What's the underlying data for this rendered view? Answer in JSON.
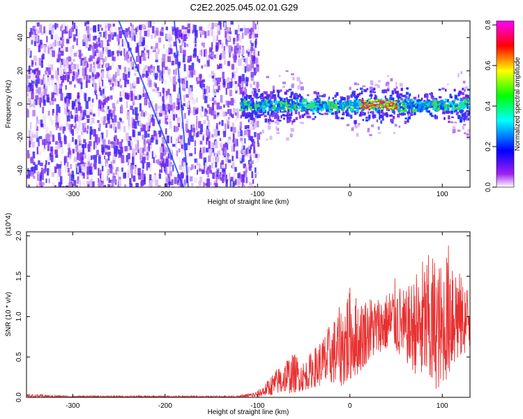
{
  "title": "C2E2.2025.045.02.01.G29",
  "chart_data": [
    {
      "type": "heatmap",
      "title": "C2E2.2025.045.02.01.G29",
      "xlabel": "Height of straight line (km)",
      "ylabel": "Frequency (Hz)",
      "xlim": [
        -350,
        130
      ],
      "ylim": [
        -50,
        50
      ],
      "xticks": [
        -300,
        -200,
        -100,
        0,
        100
      ],
      "yticks": [
        -40,
        -20,
        0,
        20,
        40
      ],
      "colorbar": {
        "label": "Normalized spectral amplitude",
        "range": [
          0.0,
          0.82
        ],
        "ticks": [
          "0.0",
          "0.2",
          "0.4",
          "0.6",
          "0.8"
        ],
        "colors": [
          "#ffffff",
          "#a020f0",
          "#0000ff",
          "#00ffff",
          "#00ff00",
          "#ffff00",
          "#ff0000",
          "#ff00ff"
        ]
      },
      "regions": [
        {
          "x_range": [
            -350,
            -120
          ],
          "freq_band": [
            -50,
            50
          ],
          "amplitude": 0.05,
          "note_color": "#7b2cf0"
        },
        {
          "x_range": [
            -120,
            130
          ],
          "freq_band": [
            -10,
            10
          ],
          "amplitude": 0.3,
          "note_color": "#1a3cff"
        },
        {
          "x_range": [
            10,
            50
          ],
          "freq_band": [
            -3,
            3
          ],
          "amplitude": 0.8,
          "note_color": "#ff2020"
        }
      ]
    },
    {
      "type": "line",
      "xlabel": "Height of straight line (km)",
      "ylabel": "SNR (10 * v/v)",
      "multiplier_label": "(x10^4)",
      "xlim": [
        -350,
        130
      ],
      "ylim": [
        0,
        2.05
      ],
      "xticks": [
        -300,
        -200,
        -100,
        0,
        100
      ],
      "yticks": [
        "0.0",
        "0.5",
        "1.0",
        "1.5",
        "2.0"
      ],
      "series": [
        {
          "color": "#e83030",
          "x": [
            -350,
            -300,
            -200,
            -120,
            -100,
            -90,
            -80,
            -70,
            -60,
            -50,
            -40,
            -30,
            -20,
            -10,
            0,
            10,
            20,
            30,
            40,
            50,
            60,
            70,
            80,
            90,
            100,
            110,
            120,
            130
          ],
          "y_mean": [
            0.02,
            0.01,
            0.01,
            0.01,
            0.03,
            0.06,
            0.1,
            0.15,
            0.2,
            0.25,
            0.3,
            0.36,
            0.45,
            0.55,
            0.62,
            0.7,
            0.77,
            0.8,
            0.83,
            0.84,
            0.83,
            0.82,
            0.85,
            0.86,
            0.9,
            0.95,
            0.75,
            0.8
          ],
          "y_peak": [
            0.04,
            0.02,
            0.02,
            0.02,
            0.08,
            0.2,
            0.35,
            0.5,
            0.55,
            0.45,
            0.6,
            0.75,
            0.95,
            1.15,
            1.4,
            1.2,
            1.3,
            1.25,
            1.3,
            1.5,
            1.3,
            1.55,
            1.75,
            1.8,
            1.65,
            2.05,
            1.5,
            1.4
          ],
          "y_min": [
            0.0,
            0.0,
            0.0,
            0.0,
            0.0,
            0.02,
            0.03,
            0.04,
            0.06,
            0.08,
            0.12,
            0.15,
            0.15,
            0.12,
            0.2,
            0.3,
            0.45,
            0.55,
            0.6,
            0.55,
            0.45,
            0.3,
            0.2,
            0.1,
            0.12,
            0.35,
            0.5,
            0.6
          ]
        }
      ]
    }
  ]
}
